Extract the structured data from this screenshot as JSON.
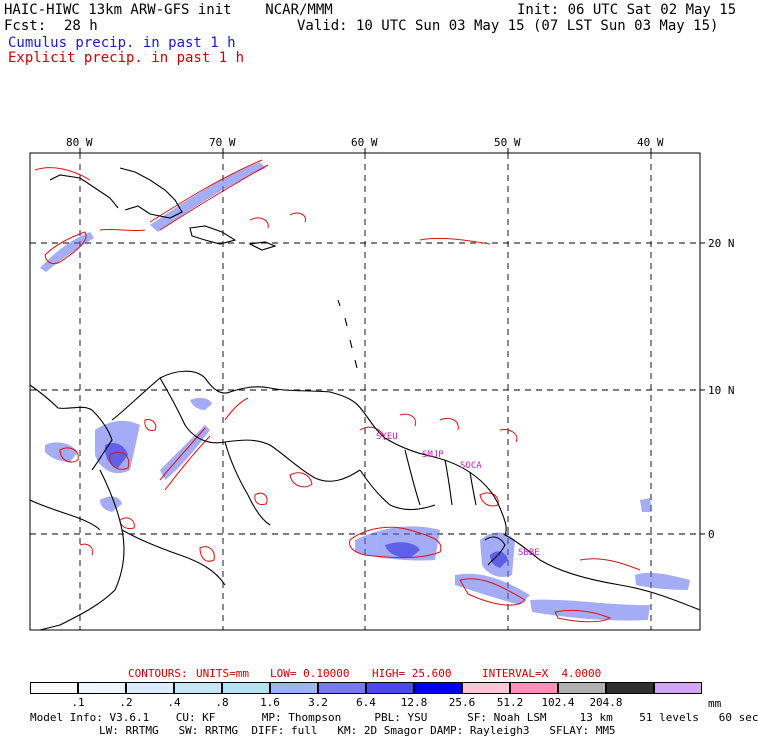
{
  "header": {
    "model_line": "HAIC-HIWC 13km ARW-GFS init    NCAR/MMM",
    "init_line": "Init: 06 UTC Sat 02 May 15",
    "fcst_label": "Fcst:",
    "fcst_value": "28 h",
    "valid_line": "Valid: 10 UTC Sun 03 May 15 (07 LST Sun 03 May 15)",
    "cumulus_label": "Cumulus precip. in past 1 h",
    "explicit_label": "Explicit precip. in past 1 h"
  },
  "map": {
    "lon_labels": [
      "80 W",
      "70 W",
      "60 W",
      "50 W",
      "40 W"
    ],
    "lat_labels": [
      "20 N",
      "10 N",
      "0"
    ],
    "station_labels": [
      "SYEU",
      "SMJP",
      "SOCA",
      "SBBE"
    ]
  },
  "contours": {
    "title": "CONTOURS:",
    "units": "UNITS=mm",
    "low": "LOW= 0.10000",
    "high": "HIGH= 25.600",
    "interval": "INTERVAL=X  4.0000"
  },
  "colorbar": {
    "ticks": [
      ".1",
      ".2",
      ".4",
      ".8",
      "1.6",
      "3.2",
      "6.4",
      "12.8",
      "25.6",
      "51.2",
      "102.4",
      "204.8"
    ],
    "unit": "mm",
    "colors": [
      "#ffffff",
      "#f0f6ff",
      "#dcecff",
      "#c6e8f6",
      "#b4e2f0",
      "#9ab4f4",
      "#7878f0",
      "#4a4af0",
      "#0000f0",
      "#ffc8d8",
      "#ff90b8",
      "#b0b0b0",
      "#303030",
      "#d2a6f6"
    ]
  },
  "footer": {
    "line1": "Model Info: V3.6.1    CU: KF       MP: Thompson     PBL: YSU      SF: Noah LSM     13 km    51 levels   60 sec",
    "line2": "LW: RRTMG   SW: RRTMG  DIFF: full   KM: 2D Smagor DAMP: Rayleigh3   SFLAY: MM5"
  }
}
